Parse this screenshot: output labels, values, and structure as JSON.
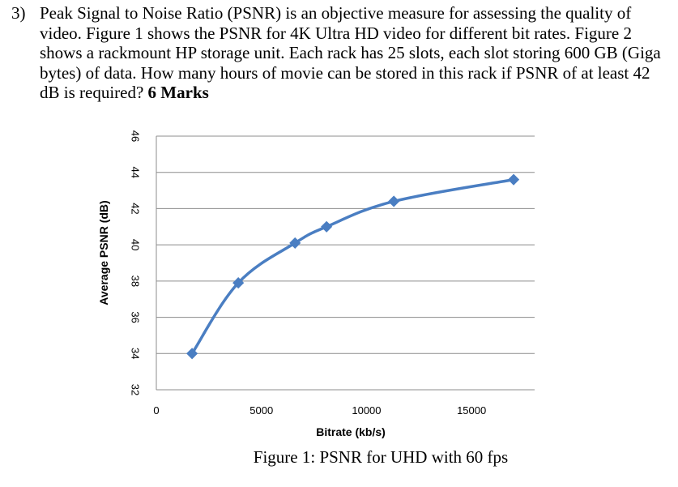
{
  "question": {
    "number": "3)",
    "text": "Peak Signal to Noise Ratio (PSNR) is an objective measure for assessing the quality of video. Figure 1 shows the PSNR for 4K Ultra HD video for different bit rates. Figure 2 shows a rackmount HP storage unit. Each rack has 25 slots, each slot storing 600 GB (Giga bytes) of data. How many hours of movie can be stored in this rack if PSNR of at least 42 dB is required?",
    "marks": "6 Marks"
  },
  "figure": {
    "caption": "Figure 1: PSNR for UHD with 60 fps"
  },
  "chart_data": {
    "type": "line",
    "title": "",
    "xlabel": "Bitrate (kb/s)",
    "ylabel": "Average PSNR (dB)",
    "xlim": [
      0,
      18000
    ],
    "ylim": [
      32,
      46
    ],
    "x_ticks": [
      "0",
      "5000",
      "10000",
      "15000"
    ],
    "y_ticks": [
      "32",
      "34",
      "36",
      "38",
      "40",
      "42",
      "44",
      "46"
    ],
    "grid": "horizontal",
    "series": [
      {
        "color": "#4a7ec2",
        "x": [
          1700,
          3900,
          6600,
          8100,
          11300,
          17000
        ],
        "y": [
          34.0,
          37.9,
          40.1,
          41.0,
          42.4,
          43.6
        ]
      }
    ]
  }
}
